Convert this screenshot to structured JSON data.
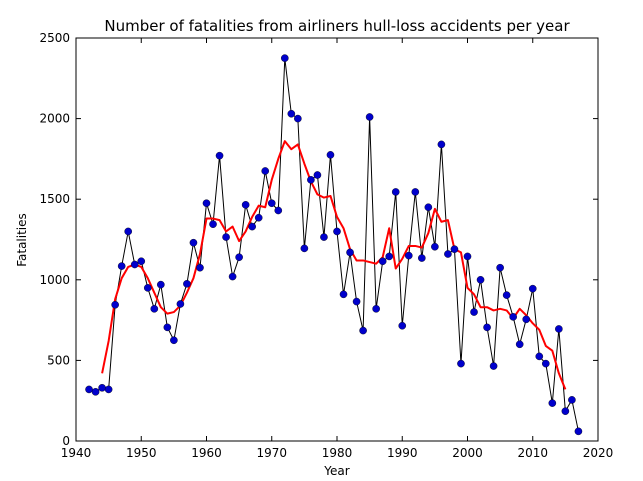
{
  "chart_data": {
    "type": "line",
    "title": "Number of fatalities from airliners hull-loss accidents per year",
    "xlabel": "Year",
    "ylabel": "Fatalities",
    "xlim": [
      1940,
      2020
    ],
    "ylim": [
      0,
      2500
    ],
    "xticks": [
      1940,
      1950,
      1960,
      1970,
      1980,
      1990,
      2000,
      2010,
      2020
    ],
    "yticks": [
      0,
      500,
      1000,
      1500,
      2000,
      2500
    ],
    "grid": false,
    "legend": false,
    "series": [
      {
        "style": "line-with-markers",
        "line_color": "#000000",
        "marker_color": "#0000cc",
        "x": [
          1942,
          1943,
          1944,
          1945,
          1946,
          1947,
          1948,
          1949,
          1950,
          1951,
          1952,
          1953,
          1954,
          1955,
          1956,
          1957,
          1958,
          1959,
          1960,
          1961,
          1962,
          1963,
          1964,
          1965,
          1966,
          1967,
          1968,
          1969,
          1970,
          1971,
          1972,
          1973,
          1974,
          1975,
          1976,
          1977,
          1978,
          1979,
          1980,
          1981,
          1982,
          1983,
          1984,
          1985,
          1986,
          1987,
          1988,
          1989,
          1990,
          1991,
          1992,
          1993,
          1994,
          1995,
          1996,
          1997,
          1998,
          1999,
          2000,
          2001,
          2002,
          2003,
          2004,
          2005,
          2006,
          2007,
          2008,
          2009,
          2010,
          2011,
          2012,
          2013,
          2014,
          2015,
          2016,
          2017
        ],
        "y": [
          320,
          305,
          330,
          320,
          845,
          1085,
          1300,
          1095,
          1115,
          950,
          820,
          970,
          705,
          625,
          850,
          975,
          1230,
          1075,
          1475,
          1345,
          1770,
          1265,
          1020,
          1140,
          1465,
          1330,
          1385,
          1675,
          1475,
          1430,
          2375,
          2030,
          2000,
          1195,
          1620,
          1650,
          1265,
          1775,
          1300,
          910,
          1170,
          865,
          685,
          2010,
          820,
          1115,
          1145,
          1545,
          715,
          1150,
          1545,
          1135,
          1450,
          1205,
          1840,
          1160,
          1190,
          480,
          1145,
          800,
          1000,
          705,
          465,
          1075,
          905,
          770,
          600,
          755,
          945,
          525,
          480,
          235,
          695,
          185,
          255,
          60
        ]
      },
      {
        "style": "line",
        "color": "#ff0000",
        "x": [
          1944,
          1945,
          1946,
          1947,
          1948,
          1949,
          1950,
          1951,
          1952,
          1953,
          1954,
          1955,
          1956,
          1957,
          1958,
          1959,
          1960,
          1961,
          1962,
          1963,
          1964,
          1965,
          1966,
          1967,
          1968,
          1969,
          1970,
          1971,
          1972,
          1973,
          1974,
          1975,
          1976,
          1977,
          1978,
          1979,
          1980,
          1981,
          1982,
          1983,
          1984,
          1985,
          1986,
          1987,
          1988,
          1989,
          1990,
          1991,
          1992,
          1993,
          1994,
          1995,
          1996,
          1997,
          1998,
          1999,
          2000,
          2001,
          2002,
          2003,
          2004,
          2005,
          2006,
          2007,
          2008,
          2009,
          2010,
          2011,
          2012,
          2013,
          2014,
          2015
        ],
        "y": [
          420,
          620,
          880,
          1010,
          1080,
          1095,
          1080,
          1010,
          920,
          830,
          790,
          800,
          840,
          920,
          1010,
          1160,
          1380,
          1380,
          1370,
          1300,
          1330,
          1240,
          1300,
          1390,
          1460,
          1450,
          1620,
          1750,
          1860,
          1810,
          1840,
          1720,
          1610,
          1530,
          1510,
          1520,
          1390,
          1320,
          1190,
          1120,
          1120,
          1110,
          1100,
          1140,
          1320,
          1070,
          1130,
          1210,
          1210,
          1200,
          1290,
          1440,
          1360,
          1370,
          1190,
          1170,
          950,
          910,
          830,
          830,
          810,
          820,
          810,
          760,
          820,
          780,
          730,
          690,
          590,
          560,
          420,
          320
        ]
      }
    ]
  }
}
